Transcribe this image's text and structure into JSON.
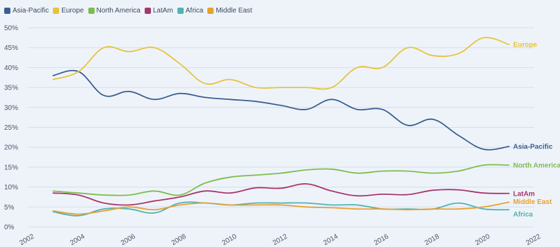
{
  "chart_data": {
    "type": "line",
    "title": "",
    "xlabel": "",
    "ylabel": "",
    "ylim": [
      0,
      50
    ],
    "xlim": [
      2002,
      2022
    ],
    "grid": true,
    "legend_position": "top-left",
    "y_ticks": [
      "0%",
      "5%",
      "10%",
      "15%",
      "20%",
      "25%",
      "30%",
      "35%",
      "40%",
      "45%",
      "50%"
    ],
    "y_tick_values": [
      0,
      5,
      10,
      15,
      20,
      25,
      30,
      35,
      40,
      45,
      50
    ],
    "x_ticks": [
      "2002",
      "2004",
      "2006",
      "2008",
      "2010",
      "2012",
      "2014",
      "2016",
      "2018",
      "2020",
      "2022"
    ],
    "x_tick_values": [
      2002,
      2004,
      2006,
      2008,
      2010,
      2012,
      2014,
      2016,
      2018,
      2020,
      2022
    ],
    "x": [
      2003,
      2004,
      2005,
      2006,
      2007,
      2008,
      2009,
      2010,
      2011,
      2012,
      2013,
      2014,
      2015,
      2016,
      2017,
      2018,
      2019,
      2020,
      2021
    ],
    "series": [
      {
        "name": "Asia-Pacific",
        "end_label": "Asia-Pacific",
        "color": "#3a5f8f",
        "values": [
          38,
          39,
          33,
          34,
          32,
          33.5,
          32.5,
          32,
          31.5,
          30.5,
          29.5,
          32,
          29.5,
          29.5,
          25.5,
          27,
          23,
          19.5,
          20.2
        ]
      },
      {
        "name": "Europe",
        "end_label": "Europe",
        "color": "#e8c33a",
        "values": [
          37,
          39,
          45,
          44,
          45,
          41,
          36,
          37,
          35,
          35,
          35,
          35,
          40,
          40,
          45,
          43,
          43.5,
          47.5,
          45.8
        ]
      },
      {
        "name": "North America",
        "end_label": "North America",
        "color": "#7dbd4a",
        "values": [
          9,
          8.5,
          8,
          8,
          9,
          8,
          11,
          12.5,
          13,
          13.5,
          14.3,
          14.5,
          13.5,
          14,
          14,
          13.5,
          14,
          15.5,
          15.5
        ]
      },
      {
        "name": "LatAm",
        "end_label": "LatAm",
        "color": "#a8366b",
        "values": [
          8.5,
          8,
          6,
          5.5,
          6.5,
          7.5,
          9,
          8.5,
          9.8,
          9.7,
          10.8,
          9,
          7.8,
          8.2,
          8.1,
          9.2,
          9.3,
          8.5,
          8.4
        ]
      },
      {
        "name": "Africa",
        "end_label": "Africa",
        "color": "#4fb3b3",
        "values": [
          3.8,
          2.8,
          4.5,
          4.5,
          3.5,
          6,
          6,
          5.5,
          6,
          6,
          6,
          5.5,
          5.5,
          4.5,
          4.5,
          4.5,
          6,
          4.5,
          4.3
        ]
      },
      {
        "name": "Middle East",
        "end_label": "Middle East",
        "color": "#e8a030",
        "values": [
          4,
          3.2,
          4,
          5,
          4.3,
          5.5,
          6,
          5.5,
          5.5,
          5.5,
          5,
          4.8,
          4.5,
          4.5,
          4.3,
          4.5,
          4.5,
          5,
          6.2
        ]
      }
    ]
  }
}
